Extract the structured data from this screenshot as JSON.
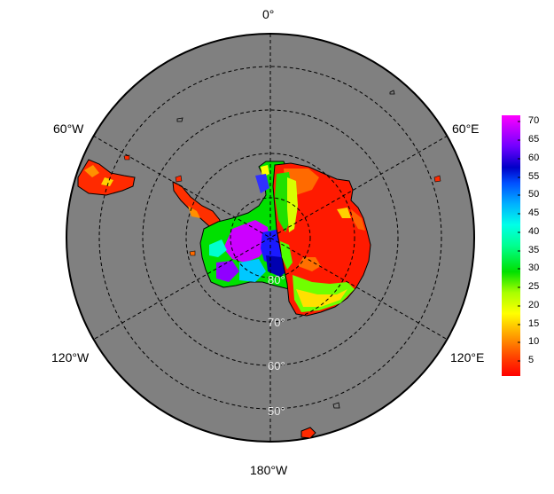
{
  "map": {
    "longitude_labels": {
      "lon_0": "0°",
      "lon_60e": "60°E",
      "lon_120e": "120°E",
      "lon_180": "180°W",
      "lon_120w": "120°W",
      "lon_60w": "60°W"
    },
    "latitude_labels": {
      "lat_80": "80°",
      "lat_70": "70°",
      "lat_60": "60°",
      "lat_50": "50°"
    },
    "colors": {
      "ocean": "#808080",
      "gridline": "#000000",
      "background": "#ffffff"
    }
  },
  "colorbar": {
    "ticks": [
      "70",
      "65",
      "60",
      "55",
      "50",
      "45",
      "40",
      "35",
      "30",
      "25",
      "20",
      "15",
      "10",
      "5"
    ],
    "range": [
      1,
      73
    ],
    "colors": [
      "#ff0000",
      "#ff6a00",
      "#ffd400",
      "#ffff00",
      "#a8ff00",
      "#00e000",
      "#00ff80",
      "#00ffe0",
      "#00b4ff",
      "#0050ff",
      "#0000c8",
      "#8000ff",
      "#ff00ff"
    ]
  }
}
